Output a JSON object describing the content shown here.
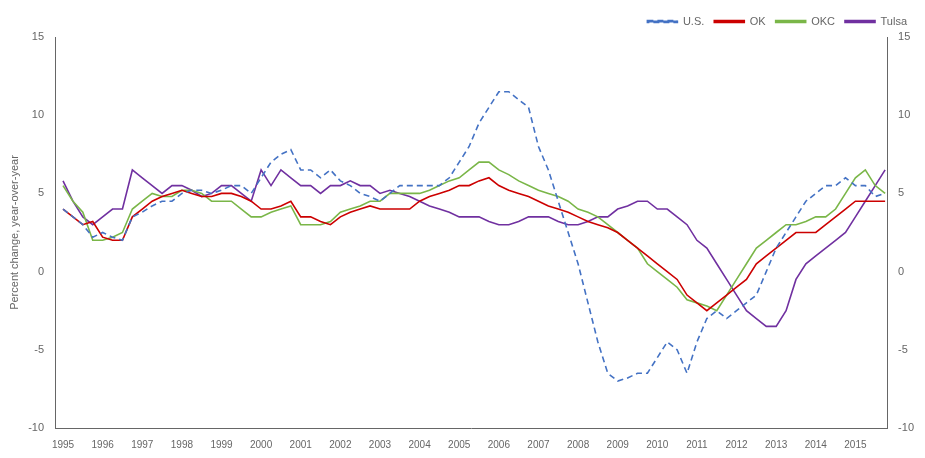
{
  "chart_data": {
    "type": "line",
    "ylabel": "Percent change, year-over-year",
    "x": [
      1995,
      1995.25,
      1995.5,
      1995.75,
      1996,
      1996.25,
      1996.5,
      1996.75,
      1997,
      1997.25,
      1997.5,
      1997.75,
      1998,
      1998.25,
      1998.5,
      1998.75,
      1999,
      1999.25,
      1999.5,
      1999.75,
      2000,
      2000.25,
      2000.5,
      2000.75,
      2001,
      2001.25,
      2001.5,
      2001.75,
      2002,
      2002.25,
      2002.5,
      2002.75,
      2003,
      2003.25,
      2003.5,
      2003.75,
      2004,
      2004.25,
      2004.5,
      2004.75,
      2005,
      2005.25,
      2005.5,
      2005.75,
      2006,
      2006.25,
      2006.5,
      2006.75,
      2007,
      2007.25,
      2007.5,
      2007.75,
      2008,
      2008.25,
      2008.5,
      2008.75,
      2009,
      2009.25,
      2009.5,
      2009.75,
      2010,
      2010.25,
      2010.5,
      2010.75,
      2011,
      2011.25,
      2011.5,
      2011.75,
      2012,
      2012.25,
      2012.5,
      2012.75,
      2013,
      2013.25,
      2013.5,
      2013.75,
      2014,
      2014.25,
      2014.5,
      2014.75,
      2015,
      2015.25,
      2015.5,
      2015.75
    ],
    "xlim": [
      1994.8,
      2015.8
    ],
    "xticks": [
      1995,
      1996,
      1997,
      1998,
      1999,
      2000,
      2001,
      2002,
      2003,
      2004,
      2005,
      2006,
      2007,
      2008,
      2009,
      2010,
      2011,
      2012,
      2013,
      2014,
      2015
    ],
    "ylim": [
      -10,
      15
    ],
    "yticks": [
      -10,
      -5,
      0,
      5,
      10,
      15
    ],
    "y2lim": [
      -10,
      15
    ],
    "y2ticks": [
      -10,
      -5,
      0,
      5,
      10,
      15
    ],
    "grid": false,
    "legend": "upper right",
    "series": [
      {
        "name": "U.S.",
        "color": "#4472C4",
        "line_style": "dashed",
        "values": [
          4.0,
          3.5,
          3.0,
          2.2,
          2.5,
          2.2,
          2.0,
          3.5,
          3.8,
          4.2,
          4.5,
          4.5,
          5.0,
          5.2,
          5.2,
          5.0,
          5.2,
          5.5,
          5.5,
          5.0,
          6.0,
          7.0,
          7.5,
          7.8,
          6.5,
          6.5,
          6.0,
          6.5,
          5.8,
          5.5,
          5.0,
          4.8,
          4.5,
          5.0,
          5.5,
          5.5,
          5.5,
          5.5,
          5.5,
          6.0,
          7.0,
          8.0,
          9.5,
          10.5,
          11.5,
          11.5,
          11.0,
          10.5,
          8.0,
          6.5,
          4.5,
          2.5,
          0.5,
          -2.0,
          -4.5,
          -6.5,
          -7.0,
          -6.8,
          -6.5,
          -6.5,
          -5.5,
          -4.5,
          -5.0,
          -6.5,
          -4.5,
          -3.0,
          -2.5,
          -3.0,
          -2.5,
          -2.0,
          -1.5,
          0.0,
          1.5,
          2.5,
          3.5,
          4.5,
          5.0,
          5.5,
          5.5,
          6.0,
          5.5,
          5.5,
          4.8,
          5.0
        ]
      },
      {
        "name": "OK",
        "color": "#CC0000",
        "line_style": "solid",
        "values": [
          4.0,
          3.5,
          3.0,
          3.2,
          2.2,
          2.0,
          2.0,
          3.5,
          4.0,
          4.5,
          4.8,
          5.0,
          5.2,
          5.0,
          4.8,
          4.8,
          5.0,
          5.0,
          4.8,
          4.5,
          4.0,
          4.0,
          4.2,
          4.5,
          3.5,
          3.5,
          3.2,
          3.0,
          3.5,
          3.8,
          4.0,
          4.2,
          4.0,
          4.0,
          4.0,
          4.0,
          4.5,
          4.8,
          5.0,
          5.2,
          5.5,
          5.5,
          5.8,
          6.0,
          5.5,
          5.2,
          5.0,
          4.8,
          4.5,
          4.2,
          4.0,
          3.8,
          3.5,
          3.2,
          3.0,
          2.8,
          2.5,
          2.0,
          1.5,
          1.0,
          0.5,
          0.0,
          -0.5,
          -1.5,
          -2.0,
          -2.5,
          -2.0,
          -1.5,
          -1.0,
          -0.5,
          0.5,
          1.0,
          1.5,
          2.0,
          2.5,
          2.5,
          2.5,
          3.0,
          3.5,
          4.0,
          4.5,
          4.5,
          4.5,
          4.5
        ]
      },
      {
        "name": "OKC",
        "color": "#7ab648",
        "line_style": "solid",
        "values": [
          5.5,
          4.5,
          3.8,
          2.0,
          2.0,
          2.2,
          2.5,
          4.0,
          4.5,
          5.0,
          4.8,
          4.8,
          5.2,
          5.2,
          5.0,
          4.5,
          4.5,
          4.5,
          4.0,
          3.5,
          3.5,
          3.8,
          4.0,
          4.2,
          3.0,
          3.0,
          3.0,
          3.2,
          3.8,
          4.0,
          4.2,
          4.5,
          4.5,
          5.0,
          5.0,
          5.0,
          5.0,
          5.2,
          5.5,
          5.8,
          6.0,
          6.5,
          7.0,
          7.0,
          6.5,
          6.2,
          5.8,
          5.5,
          5.2,
          5.0,
          4.8,
          4.5,
          4.0,
          3.8,
          3.5,
          3.0,
          2.5,
          2.0,
          1.5,
          0.5,
          0.0,
          -0.5,
          -1.0,
          -1.8,
          -2.0,
          -2.2,
          -2.5,
          -1.5,
          -0.5,
          0.5,
          1.5,
          2.0,
          2.5,
          3.0,
          3.0,
          3.2,
          3.5,
          3.5,
          4.0,
          5.0,
          6.0,
          6.5,
          5.5,
          5.0
        ]
      },
      {
        "name": "Tulsa",
        "color": "#7030A0",
        "line_style": "solid",
        "values": [
          5.8,
          4.5,
          3.5,
          3.0,
          3.5,
          4.0,
          4.0,
          6.5,
          6.0,
          5.5,
          5.0,
          5.5,
          5.5,
          5.2,
          4.8,
          5.0,
          5.5,
          5.5,
          5.0,
          4.5,
          6.5,
          5.5,
          6.5,
          6.0,
          5.5,
          5.5,
          5.0,
          5.5,
          5.5,
          5.8,
          5.5,
          5.5,
          5.0,
          5.2,
          5.0,
          4.8,
          4.5,
          4.2,
          4.0,
          3.8,
          3.5,
          3.5,
          3.5,
          3.2,
          3.0,
          3.0,
          3.2,
          3.5,
          3.5,
          3.5,
          3.2,
          3.0,
          3.0,
          3.2,
          3.5,
          3.5,
          4.0,
          4.2,
          4.5,
          4.5,
          4.0,
          4.0,
          3.5,
          3.0,
          2.0,
          1.5,
          0.5,
          -0.5,
          -1.5,
          -2.5,
          -3.0,
          -3.5,
          -3.5,
          -2.5,
          -0.5,
          0.5,
          1.0,
          1.5,
          2.0,
          2.5,
          3.5,
          4.5,
          5.5,
          6.5
        ]
      }
    ]
  }
}
